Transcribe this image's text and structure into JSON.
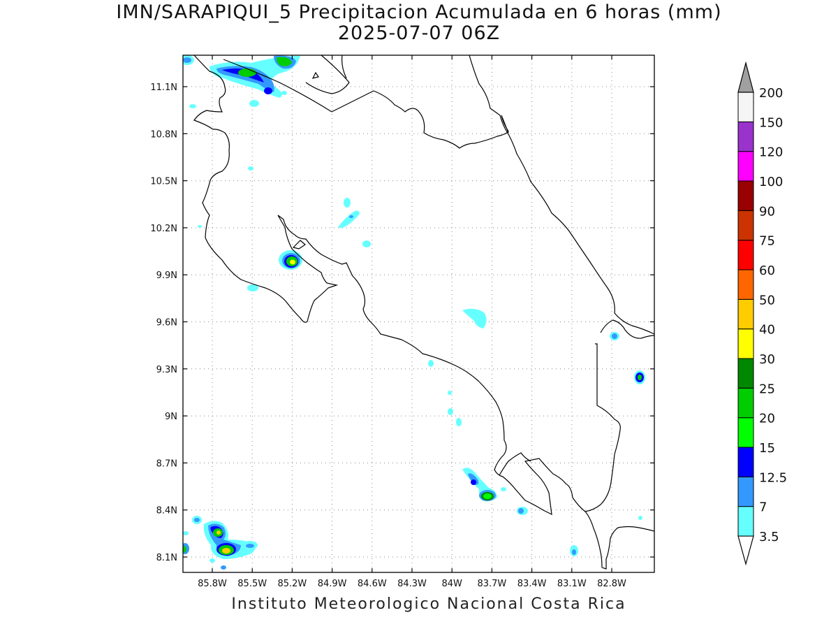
{
  "title": {
    "line1": "IMN/SARAPIQUI_5 Precipitacion Acumulada en 6 horas (mm)",
    "line2": "2025-07-07 06Z"
  },
  "footer": "Instituto Meteorologico Nacional Costa Rica",
  "map": {
    "grid": "dotted",
    "lat_ticks": [
      "11.1N",
      "10.8N",
      "10.5N",
      "10.2N",
      "9.9N",
      "9.6N",
      "9.3N",
      "9N",
      "8.7N",
      "8.4N",
      "8.1N"
    ],
    "lon_ticks": [
      "85.8W",
      "85.5W",
      "85.2W",
      "84.9W",
      "84.6W",
      "84.3W",
      "84W",
      "83.7W",
      "83.4W",
      "83.1W",
      "82.8W"
    ]
  },
  "colorbar": {
    "labels": [
      "3.5",
      "7",
      "12.5",
      "15",
      "20",
      "25",
      "30",
      "40",
      "50",
      "60",
      "75",
      "90",
      "100",
      "120",
      "150",
      "200"
    ],
    "colors": [
      "#66ffff",
      "#3399ff",
      "#0000ff",
      "#00ff00",
      "#00cc00",
      "#008800",
      "#ffff00",
      "#ffcc00",
      "#ff6600",
      "#ff0000",
      "#cc3300",
      "#990000",
      "#ff00ff",
      "#9933cc",
      "#f5f5f5"
    ],
    "underflow_color": "#ffffff",
    "overflow_color": "#a0a0a0"
  }
}
